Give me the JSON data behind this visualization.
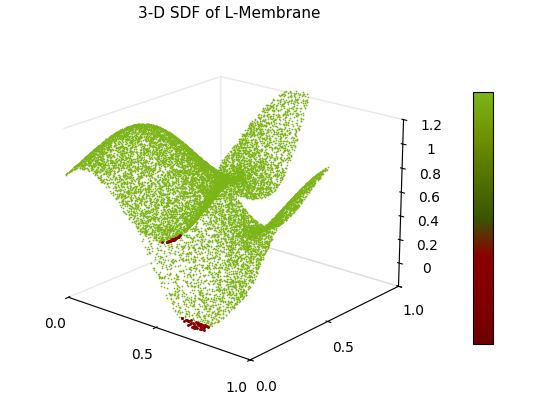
{
  "title": "3-D SDF of L-Membrane",
  "title_fontsize": 11,
  "main_color": "#7CB518",
  "highlight_color": "#8B0000",
  "scatter_size": 1.5,
  "n_points": 15000,
  "elev": 20,
  "azim": -50,
  "colorbar_colors": [
    "#6B8C00",
    "#4a7000",
    "#8B0000",
    "#5a0000"
  ],
  "zlim": [
    -0.2,
    1.2
  ],
  "ztick_labels": [
    "",
    "0",
    "0.2",
    "0.4",
    "0.6",
    "0.8",
    "1",
    "1.2"
  ]
}
